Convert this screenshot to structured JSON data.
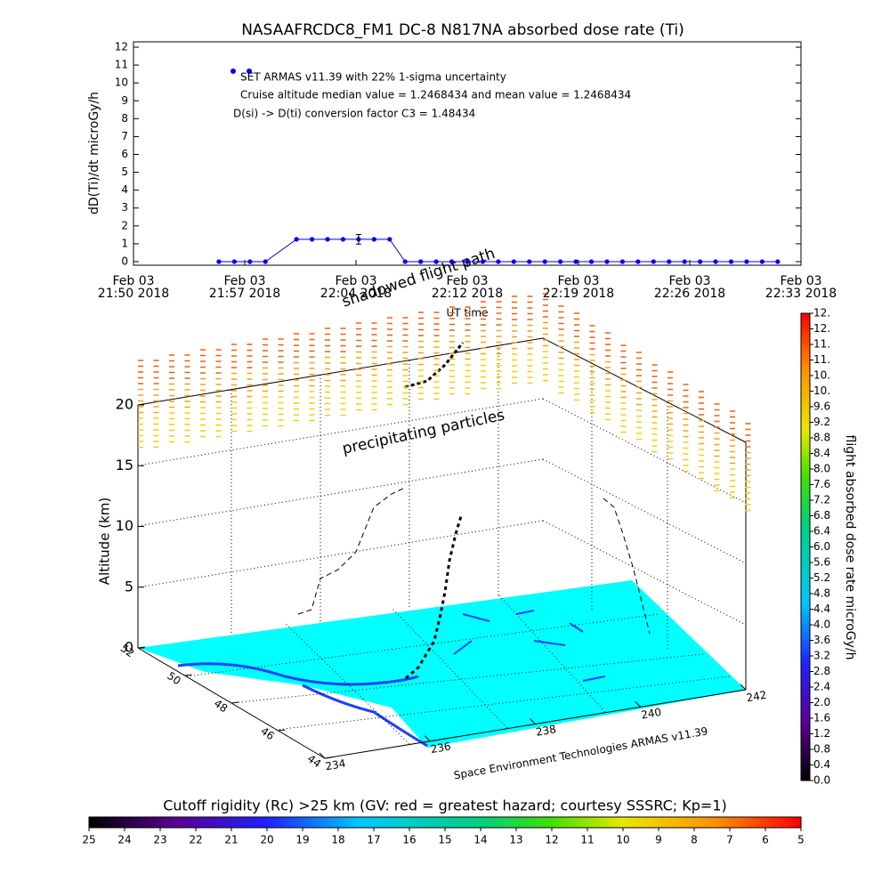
{
  "chart_data": [
    {
      "type": "line",
      "title": "NASAAFRCDC8_FM1 DC-8   N817NA absorbed dose rate (Ti)",
      "ylabel": "dD(Ti)/dt microGy/h",
      "xlabel": "UT time",
      "annotations": [
        "SET ARMAS v11.39 with 22% 1-sigma uncertainty",
        "Cruise altitude median value = 1.2468434 and mean value = 1.2468434",
        "D(si) -> D(ti) conversion factor C3 = 1.48434"
      ],
      "color": "#0000ff",
      "x": [
        "2018-02-03T21:55:30",
        "2018-02-03T21:56:30",
        "2018-02-03T21:57:30",
        "2018-02-03T21:58:30",
        "2018-02-03T22:00:30",
        "2018-02-03T22:01:30",
        "2018-02-03T22:02:30",
        "2018-02-03T22:03:30",
        "2018-02-03T22:04:30",
        "2018-02-03T22:05:30",
        "2018-02-03T22:06:30",
        "2018-02-03T22:07:30",
        "2018-02-03T22:08:30",
        "2018-02-03T22:09:30",
        "2018-02-03T22:10:30",
        "2018-02-03T22:11:30",
        "2018-02-03T22:12:30",
        "2018-02-03T22:13:30",
        "2018-02-03T22:14:30",
        "2018-02-03T22:15:30",
        "2018-02-03T22:16:30",
        "2018-02-03T22:17:30",
        "2018-02-03T22:18:30",
        "2018-02-03T22:19:30",
        "2018-02-03T22:20:30",
        "2018-02-03T22:21:30",
        "2018-02-03T22:22:30",
        "2018-02-03T22:23:30",
        "2018-02-03T22:24:30",
        "2018-02-03T22:25:30",
        "2018-02-03T22:26:30",
        "2018-02-03T22:27:30",
        "2018-02-03T22:28:30",
        "2018-02-03T22:29:30",
        "2018-02-03T22:30:30",
        "2018-02-03T22:31:30"
      ],
      "values": [
        0,
        0,
        0,
        0,
        1.25,
        1.25,
        1.25,
        1.25,
        1.25,
        1.25,
        1.25,
        0,
        0,
        0,
        0,
        0,
        0,
        0,
        0,
        0,
        0,
        0,
        0,
        0,
        0,
        0,
        0,
        0,
        0,
        0,
        0,
        0,
        0,
        0,
        0,
        0
      ],
      "errors": [
        null,
        null,
        null,
        null,
        null,
        null,
        null,
        null,
        0.27,
        null,
        null,
        null,
        null,
        null,
        null,
        null,
        null,
        null,
        null,
        null,
        null,
        null,
        null,
        null,
        null,
        null,
        null,
        null,
        null,
        null,
        null,
        null,
        null,
        null,
        null,
        null
      ],
      "xlim": [
        "2018-02-03T21:50:00",
        "2018-02-03T22:33:00"
      ],
      "xticks": [
        {
          "value": "2018-02-03T21:50:00",
          "label": [
            "Feb 03",
            "21:50 2018"
          ]
        },
        {
          "value": "2018-02-03T21:57:10",
          "label": [
            "Feb 03",
            "21:57 2018"
          ]
        },
        {
          "value": "2018-02-03T22:04:20",
          "label": [
            "Feb 03",
            "22:04 2018"
          ]
        },
        {
          "value": "2018-02-03T22:11:30",
          "label": [
            "Feb 03",
            "22:12 2018"
          ]
        },
        {
          "value": "2018-02-03T22:18:40",
          "label": [
            "Feb 03",
            "22:19 2018"
          ]
        },
        {
          "value": "2018-02-03T22:25:50",
          "label": [
            "Feb 03",
            "22:26 2018"
          ]
        },
        {
          "value": "2018-02-03T22:33:00",
          "label": [
            "Feb 03",
            "22:33 2018"
          ]
        }
      ],
      "ylim": [
        -0.2,
        12.3
      ],
      "yticks": [
        0,
        1,
        2,
        3,
        4,
        5,
        6,
        7,
        8,
        9,
        10,
        11,
        12
      ]
    },
    {
      "type": "scatter3d",
      "zlabel": "Altitude (km)",
      "zlim": [
        0,
        20
      ],
      "zticks": [
        0,
        5,
        10,
        15,
        20
      ],
      "ylim": [
        52,
        44
      ],
      "yticks": [
        52,
        50,
        48,
        46,
        44
      ],
      "xlim": [
        234,
        242
      ],
      "xticks": [
        234,
        236,
        238,
        240,
        242
      ],
      "credit": "Space Environment Technologies ARMAS v11.39",
      "annotations": [
        "precipitating particles",
        "shadowed flight path"
      ],
      "colorbar_label": "flight absorbed dose rate microGy/h",
      "clim": [
        0,
        12
      ],
      "cticks": [
        {
          "value": 0,
          "label": "0.0"
        },
        {
          "value": 0.4,
          "label": "0.4"
        },
        {
          "value": 0.8,
          "label": "0.8"
        },
        {
          "value": 1.2,
          "label": "1.2"
        },
        {
          "value": 1.6,
          "label": "1.6"
        },
        {
          "value": 2,
          "label": "2.0"
        },
        {
          "value": 2.4,
          "label": "2.4"
        },
        {
          "value": 2.8,
          "label": "2.8"
        },
        {
          "value": 3.2,
          "label": "3.2"
        },
        {
          "value": 3.6,
          "label": "3.6"
        },
        {
          "value": 4,
          "label": "4.0"
        },
        {
          "value": 4.4,
          "label": "4.4"
        },
        {
          "value": 4.8,
          "label": "4.8"
        },
        {
          "value": 5.2,
          "label": "5.2"
        },
        {
          "value": 5.6,
          "label": "5.6"
        },
        {
          "value": 6,
          "label": "6.0"
        },
        {
          "value": 6.4,
          "label": "6.4"
        },
        {
          "value": 6.8,
          "label": "6.8"
        },
        {
          "value": 7.2,
          "label": "7.2"
        },
        {
          "value": 7.6,
          "label": "7.6"
        },
        {
          "value": 8,
          "label": "8.0"
        },
        {
          "value": 8.4,
          "label": "8.4"
        },
        {
          "value": 8.8,
          "label": "8.8"
        },
        {
          "value": 9.2,
          "label": "9.2"
        },
        {
          "value": 9.6,
          "label": "9.6"
        },
        {
          "value": 10,
          "label": "10."
        },
        {
          "value": 10.4,
          "label": "10."
        },
        {
          "value": 10.8,
          "label": "11."
        },
        {
          "value": 11.2,
          "label": "11."
        },
        {
          "value": 11.6,
          "label": "12."
        },
        {
          "value": 12,
          "label": "12."
        }
      ],
      "rigidity_title": "Cutoff rigidity (Rc) >25 km (GV: red = greatest hazard; courtesy SSSRC; Kp=1)",
      "rlim": [
        25,
        5
      ],
      "rticks": [
        25,
        24,
        23,
        22,
        21,
        20,
        19,
        18,
        17,
        16,
        15,
        14,
        13,
        12,
        11,
        10,
        9,
        8,
        7,
        6,
        5
      ]
    }
  ]
}
